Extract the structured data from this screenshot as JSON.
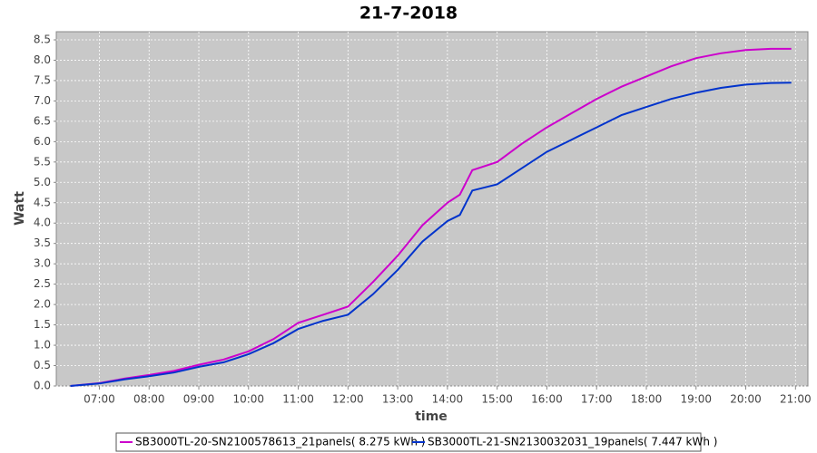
{
  "chart_data": {
    "type": "line",
    "title": "21-7-2018",
    "x_label": "time",
    "y_label": "Watt",
    "x": [
      "06:25",
      "07:00",
      "07:30",
      "08:00",
      "08:30",
      "09:00",
      "09:30",
      "10:00",
      "10:30",
      "11:00",
      "11:30",
      "12:00",
      "12:30",
      "13:00",
      "13:30",
      "14:00",
      "14:15",
      "14:30",
      "15:00",
      "15:30",
      "16:00",
      "16:30",
      "17:00",
      "17:30",
      "18:00",
      "18:30",
      "19:00",
      "19:30",
      "20:00",
      "20:30",
      "20:55"
    ],
    "series": [
      {
        "name": "SB3000TL-20-SN2100578613_21panels( 8.275 kWh )",
        "color": "#cc00cc",
        "values": [
          0,
          0.07,
          0.18,
          0.27,
          0.37,
          0.52,
          0.65,
          0.85,
          1.15,
          1.55,
          1.75,
          1.95,
          2.55,
          3.2,
          3.95,
          4.5,
          4.7,
          5.3,
          5.5,
          5.95,
          6.35,
          6.7,
          7.05,
          7.35,
          7.6,
          7.85,
          8.05,
          8.17,
          8.25,
          8.28,
          8.28
        ]
      },
      {
        "name": "SB3000TL-21-SN2130032031_19panels( 7.447 kWh )",
        "color": "#0033cc",
        "values": [
          0,
          0.06,
          0.16,
          0.24,
          0.33,
          0.47,
          0.58,
          0.78,
          1.05,
          1.4,
          1.6,
          1.75,
          2.25,
          2.85,
          3.55,
          4.05,
          4.2,
          4.8,
          4.95,
          5.35,
          5.75,
          6.05,
          6.35,
          6.65,
          6.85,
          7.05,
          7.2,
          7.32,
          7.4,
          7.44,
          7.45
        ]
      }
    ],
    "xlim": [
      "06:08",
      "21:15"
    ],
    "xticks": [
      "07:00",
      "08:00",
      "09:00",
      "10:00",
      "11:00",
      "12:00",
      "13:00",
      "14:00",
      "15:00",
      "16:00",
      "17:00",
      "18:00",
      "19:00",
      "20:00",
      "21:00"
    ],
    "ylim": [
      0,
      8.7
    ],
    "yticks": [
      {
        "value": 0,
        "label": "0.0"
      },
      0.5,
      {
        "value": 1,
        "label": "1.0"
      },
      1.5,
      {
        "value": 2,
        "label": "2.0"
      },
      2.5,
      {
        "value": 3,
        "label": "3.0"
      },
      3.5,
      {
        "value": 4,
        "label": "4.0"
      },
      4.5,
      {
        "value": 5,
        "label": "5.0"
      },
      5.5,
      {
        "value": 6,
        "label": "6.0"
      },
      6.5,
      {
        "value": 7,
        "label": "7.0"
      },
      7.5,
      {
        "value": 8,
        "label": "8.0"
      },
      8.5
    ],
    "grid": true
  }
}
